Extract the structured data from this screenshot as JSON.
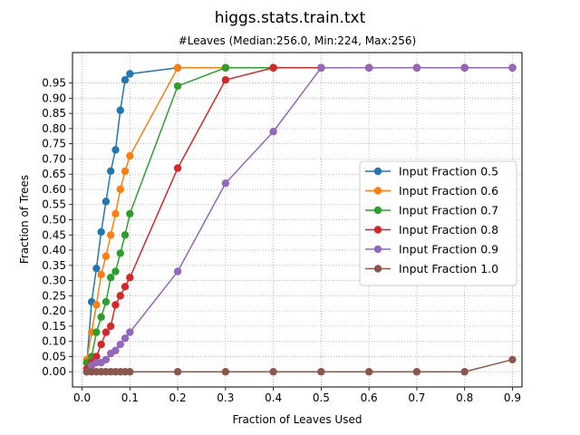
{
  "chart_data": {
    "type": "line",
    "title": "higgs.stats.train.txt",
    "subtitle": "#Leaves (Median:256.0, Min:224, Max:256)",
    "xlabel": "Fraction of Leaves Used",
    "ylabel": "Fraction of Trees",
    "xlim": [
      -0.02,
      0.92
    ],
    "ylim": [
      -0.05,
      1.05
    ],
    "x_ticks": [
      0.0,
      0.1,
      0.2,
      0.3,
      0.4,
      0.5,
      0.6,
      0.7,
      0.8,
      0.9
    ],
    "x_tick_labels": [
      "0.0",
      "0.1",
      "0.2",
      "0.3",
      "0.4",
      "0.5",
      "0.6",
      "0.7",
      "0.8",
      "0.9"
    ],
    "y_ticks": [
      0.0,
      0.05,
      0.1,
      0.15,
      0.2,
      0.25,
      0.3,
      0.35,
      0.4,
      0.45,
      0.5,
      0.55,
      0.6,
      0.65,
      0.7,
      0.75,
      0.8,
      0.85,
      0.9,
      0.95
    ],
    "y_tick_labels": [
      "0.00",
      "0.05",
      "0.10",
      "0.15",
      "0.20",
      "0.25",
      "0.30",
      "0.35",
      "0.40",
      "0.45",
      "0.50",
      "0.55",
      "0.60",
      "0.65",
      "0.70",
      "0.75",
      "0.80",
      "0.85",
      "0.90",
      "0.95"
    ],
    "grid": true,
    "legend_position": "center-right",
    "series": [
      {
        "name": "Input Fraction 0.5",
        "color": "#1f77b4",
        "x": [
          0.01,
          0.02,
          0.03,
          0.04,
          0.05,
          0.06,
          0.07,
          0.08,
          0.09,
          0.1,
          0.2,
          0.3,
          0.4,
          0.5,
          0.6,
          0.7,
          0.8,
          0.9
        ],
        "y": [
          0.03,
          0.23,
          0.34,
          0.46,
          0.56,
          0.66,
          0.73,
          0.86,
          0.96,
          0.98,
          1.0,
          1.0,
          1.0,
          1.0,
          1.0,
          1.0,
          1.0,
          1.0
        ]
      },
      {
        "name": "Input Fraction 0.6",
        "color": "#ff7f0e",
        "x": [
          0.01,
          0.02,
          0.03,
          0.04,
          0.05,
          0.06,
          0.07,
          0.08,
          0.09,
          0.1,
          0.2,
          0.3,
          0.4,
          0.5,
          0.6,
          0.7,
          0.8,
          0.9
        ],
        "y": [
          0.04,
          0.13,
          0.22,
          0.32,
          0.38,
          0.45,
          0.52,
          0.6,
          0.66,
          0.71,
          1.0,
          1.0,
          1.0,
          1.0,
          1.0,
          1.0,
          1.0,
          1.0
        ]
      },
      {
        "name": "Input Fraction 0.7",
        "color": "#2ca02c",
        "x": [
          0.01,
          0.02,
          0.03,
          0.04,
          0.05,
          0.06,
          0.07,
          0.08,
          0.09,
          0.1,
          0.2,
          0.3,
          0.4,
          0.5,
          0.6,
          0.7,
          0.8,
          0.9
        ],
        "y": [
          0.03,
          0.05,
          0.13,
          0.18,
          0.23,
          0.31,
          0.33,
          0.39,
          0.45,
          0.52,
          0.94,
          1.0,
          1.0,
          1.0,
          1.0,
          1.0,
          1.0,
          1.0
        ]
      },
      {
        "name": "Input Fraction 0.8",
        "color": "#d62728",
        "x": [
          0.01,
          0.02,
          0.03,
          0.04,
          0.05,
          0.06,
          0.07,
          0.08,
          0.09,
          0.1,
          0.2,
          0.3,
          0.4,
          0.5,
          0.6,
          0.7,
          0.8,
          0.9
        ],
        "y": [
          0.01,
          0.03,
          0.05,
          0.09,
          0.13,
          0.15,
          0.22,
          0.25,
          0.28,
          0.31,
          0.67,
          0.96,
          1.0,
          1.0,
          1.0,
          1.0,
          1.0,
          1.0
        ]
      },
      {
        "name": "Input Fraction 0.9",
        "color": "#9467bd",
        "x": [
          0.01,
          0.02,
          0.03,
          0.04,
          0.05,
          0.06,
          0.07,
          0.08,
          0.09,
          0.1,
          0.2,
          0.3,
          0.4,
          0.5,
          0.6,
          0.7,
          0.8,
          0.9
        ],
        "y": [
          0.0,
          0.02,
          0.03,
          0.03,
          0.04,
          0.06,
          0.07,
          0.09,
          0.11,
          0.13,
          0.33,
          0.62,
          0.79,
          1.0,
          1.0,
          1.0,
          1.0,
          1.0
        ]
      },
      {
        "name": "Input Fraction 1.0",
        "color": "#8c564b",
        "x": [
          0.01,
          0.02,
          0.03,
          0.04,
          0.05,
          0.06,
          0.07,
          0.08,
          0.09,
          0.1,
          0.2,
          0.3,
          0.4,
          0.5,
          0.6,
          0.7,
          0.8,
          0.9
        ],
        "y": [
          0.0,
          0.0,
          0.0,
          0.0,
          0.0,
          0.0,
          0.0,
          0.0,
          0.0,
          0.0,
          0.0,
          0.0,
          0.0,
          0.0,
          0.0,
          0.0,
          0.0,
          0.04
        ]
      }
    ]
  }
}
